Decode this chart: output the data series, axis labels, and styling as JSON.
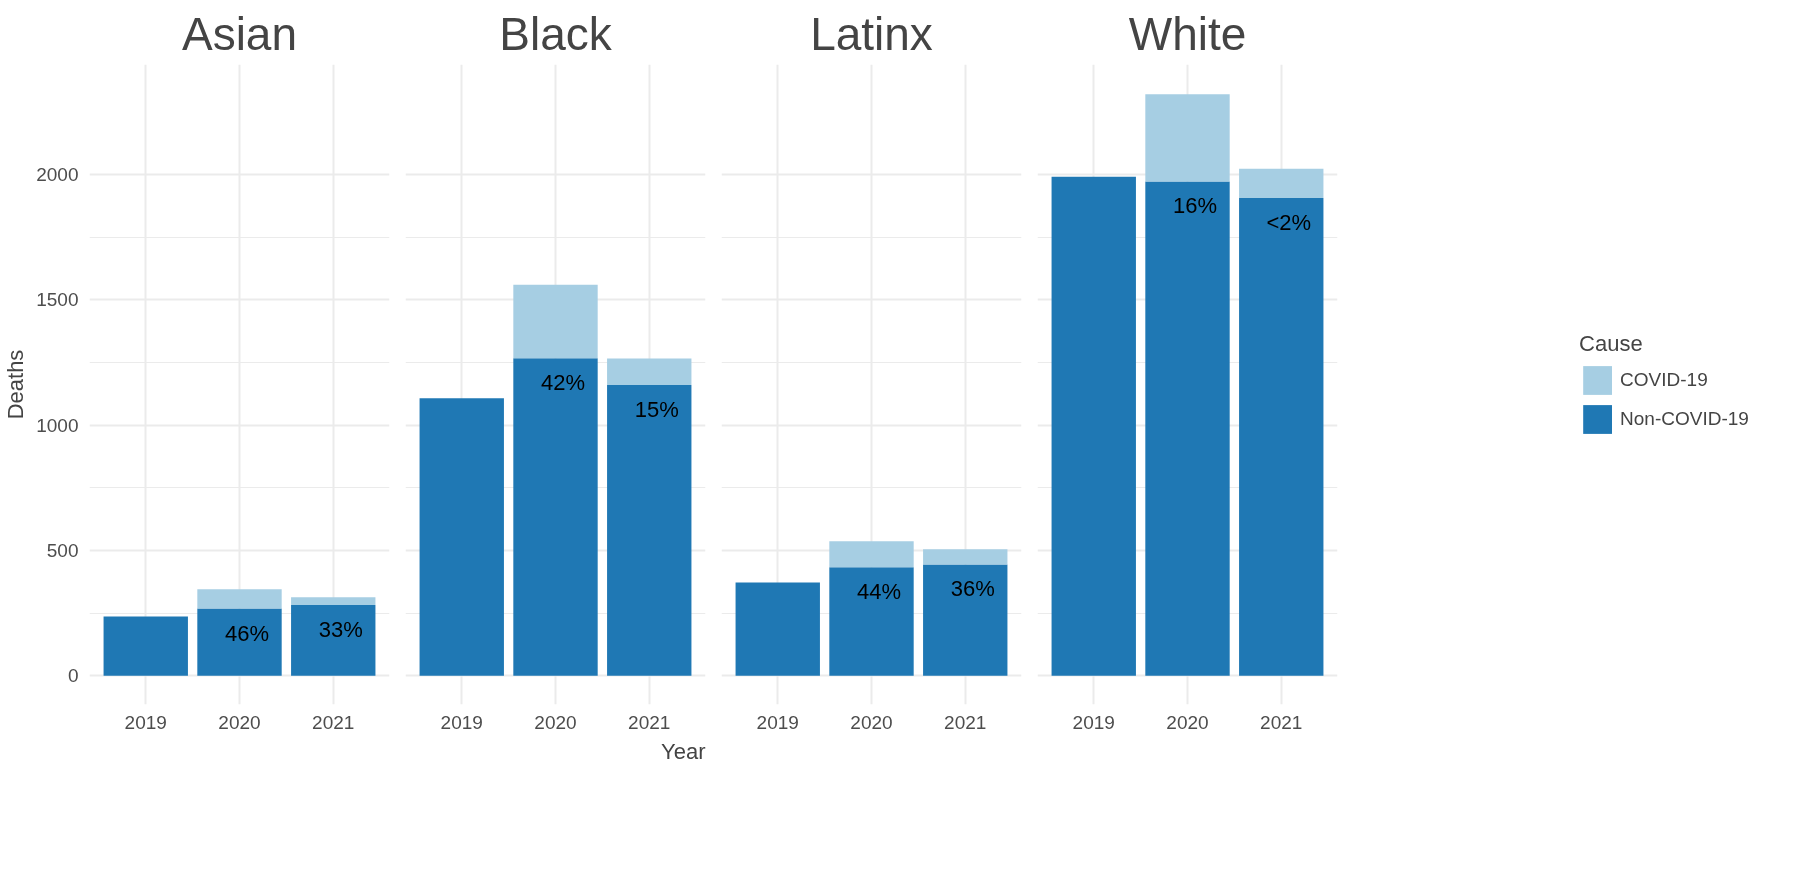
{
  "chart_data": [
    {
      "type": "bar",
      "title": "Asian",
      "ylabel": "Deaths",
      "categories": [
        "2019",
        "2020",
        "2021"
      ],
      "stacked": true,
      "grid": true,
      "ylim": [
        -115,
        2440
      ],
      "yticks": [
        0,
        500,
        1000,
        1500,
        2000
      ],
      "series": [
        {
          "color": "#1f78b4",
          "values": [
            236,
            268,
            282
          ]
        },
        {
          "color": "#a6cee3",
          "values": [
            0,
            77,
            31
          ]
        }
      ],
      "annotations": [
        "46%",
        "33%"
      ]
    },
    {
      "type": "bar",
      "title": "Black",
      "xlabel": "Year",
      "categories": [
        "2019",
        "2020",
        "2021"
      ],
      "stacked": true,
      "grid": true,
      "ylim": [
        -115,
        2440
      ],
      "yticks": [
        0,
        500,
        1000,
        1500,
        2000
      ],
      "tick_labels": "x",
      "series": [
        {
          "color": "#1f78b4",
          "values": [
            1108,
            1267,
            1161
          ]
        },
        {
          "color": "#a6cee3",
          "values": [
            0,
            294,
            105
          ]
        }
      ],
      "annotations": [
        "42%",
        "15%"
      ]
    },
    {
      "type": "bar",
      "title": "Latinx",
      "categories": [
        "2019",
        "2020",
        "2021"
      ],
      "stacked": true,
      "grid": true,
      "ylim": [
        -115,
        2440
      ],
      "yticks": [
        0,
        500,
        1000,
        1500,
        2000
      ],
      "tick_labels": "x",
      "series": [
        {
          "color": "#1f78b4",
          "values": [
            372,
            433,
            444
          ]
        },
        {
          "color": "#a6cee3",
          "values": [
            0,
            104,
            61
          ]
        }
      ],
      "annotations": [
        "44%",
        "36%"
      ]
    },
    {
      "type": "bar",
      "title": "White",
      "categories": [
        "2019",
        "2020",
        "2021"
      ],
      "stacked": true,
      "grid": true,
      "ylim": [
        -115,
        2440
      ],
      "yticks": [
        0,
        500,
        1000,
        1500,
        2000
      ],
      "tick_labels": "x",
      "legend": "right",
      "legend_title": "Cause",
      "series": [
        {
          "name": "Non-COVID-19",
          "color": "#1f78b4",
          "values": [
            1992,
            1973,
            1907
          ]
        },
        {
          "name": "COVID-19",
          "color": "#a6cee3",
          "values": [
            0,
            348,
            117
          ]
        }
      ],
      "annotations": [
        "16%",
        "<2%"
      ]
    }
  ]
}
